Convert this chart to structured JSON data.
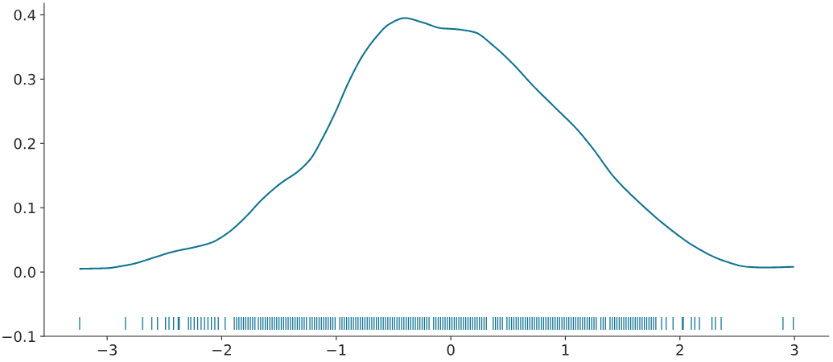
{
  "chart_data": {
    "type": "line",
    "series": [
      {
        "color": "#117391",
        "x": [
          -3.237,
          -2.998,
          -2.881,
          -2.764,
          -2.6,
          -2.413,
          -2.226,
          -2.086,
          -1.945,
          -1.805,
          -1.641,
          -1.477,
          -1.337,
          -1.22,
          -1.126,
          -1.009,
          -0.893,
          -0.775,
          -0.658,
          -0.542,
          -0.401,
          -0.261,
          -0.074,
          0.02,
          0.207,
          0.371,
          0.535,
          0.722,
          0.909,
          1.096,
          1.236,
          1.423,
          1.658,
          1.891,
          2.125,
          2.359,
          2.593,
          2.733,
          2.991
        ],
        "values": [
          0.005,
          0.006,
          0.009,
          0.013,
          0.022,
          0.032,
          0.039,
          0.046,
          0.061,
          0.083,
          0.114,
          0.139,
          0.156,
          0.177,
          0.206,
          0.248,
          0.295,
          0.335,
          0.364,
          0.385,
          0.395,
          0.389,
          0.379,
          0.378,
          0.373,
          0.352,
          0.325,
          0.289,
          0.256,
          0.223,
          0.193,
          0.148,
          0.106,
          0.07,
          0.04,
          0.019,
          0.008,
          0.007,
          0.008
        ]
      },
      {
        "type": "bar",
        "color": "#117391",
        "x": [
          -3.24,
          -2.84,
          -2.69,
          -2.61,
          -2.56,
          -2.49,
          -2.46,
          -2.42,
          -2.38,
          -2.37,
          -2.29,
          -2.27,
          -2.24,
          -2.21,
          -2.18,
          -2.15,
          -2.12,
          -2.09,
          -2.06,
          -2.03,
          -1.97,
          -1.89,
          -1.87,
          -1.85,
          -1.83,
          -1.81,
          -1.79,
          -1.77,
          -1.75,
          -1.73,
          -1.71,
          -1.68,
          -1.66,
          -1.64,
          -1.62,
          -1.6,
          -1.58,
          -1.56,
          -1.54,
          -1.52,
          -1.5,
          -1.48,
          -1.46,
          -1.44,
          -1.42,
          -1.4,
          -1.38,
          -1.36,
          -1.34,
          -1.32,
          -1.3,
          -1.28,
          -1.26,
          -1.23,
          -1.21,
          -1.19,
          -1.17,
          -1.15,
          -1.13,
          -1.11,
          -1.09,
          -1.07,
          -1.05,
          -1.03,
          -1.01,
          -0.97,
          -0.95,
          -0.93,
          -0.91,
          -0.89,
          -0.87,
          -0.85,
          -0.83,
          -0.81,
          -0.79,
          -0.77,
          -0.75,
          -0.73,
          -0.71,
          -0.69,
          -0.67,
          -0.65,
          -0.63,
          -0.61,
          -0.59,
          -0.57,
          -0.55,
          -0.53,
          -0.51,
          -0.49,
          -0.47,
          -0.45,
          -0.43,
          -0.41,
          -0.39,
          -0.37,
          -0.35,
          -0.33,
          -0.31,
          -0.29,
          -0.27,
          -0.25,
          -0.23,
          -0.21,
          -0.19,
          -0.15,
          -0.13,
          -0.11,
          -0.09,
          -0.07,
          -0.05,
          -0.03,
          -0.01,
          0.01,
          0.03,
          0.05,
          0.07,
          0.09,
          0.11,
          0.13,
          0.15,
          0.17,
          0.19,
          0.21,
          0.23,
          0.25,
          0.27,
          0.29,
          0.31,
          0.37,
          0.39,
          0.41,
          0.43,
          0.45,
          0.49,
          0.51,
          0.53,
          0.55,
          0.57,
          0.59,
          0.61,
          0.63,
          0.65,
          0.67,
          0.69,
          0.71,
          0.73,
          0.75,
          0.77,
          0.79,
          0.81,
          0.83,
          0.85,
          0.87,
          0.89,
          0.91,
          0.93,
          0.95,
          0.97,
          0.99,
          1.01,
          1.03,
          1.05,
          1.07,
          1.09,
          1.11,
          1.13,
          1.15,
          1.17,
          1.19,
          1.21,
          1.23,
          1.25,
          1.27,
          1.31,
          1.33,
          1.35,
          1.39,
          1.41,
          1.43,
          1.45,
          1.47,
          1.49,
          1.51,
          1.53,
          1.55,
          1.57,
          1.59,
          1.61,
          1.63,
          1.65,
          1.67,
          1.69,
          1.71,
          1.73,
          1.75,
          1.77,
          1.79,
          1.84,
          1.88,
          1.94,
          2.02,
          2.03,
          2.1,
          2.13,
          2.17,
          2.28,
          2.31,
          2.36,
          2.9,
          2.99
        ],
        "base": [
          -0.09,
          -0.09,
          -0.09,
          -0.09,
          -0.09,
          -0.09,
          -0.09,
          -0.09,
          -0.09,
          -0.09,
          -0.09,
          -0.09,
          -0.09,
          -0.09,
          -0.09,
          -0.09,
          -0.09,
          -0.09,
          -0.09,
          -0.09,
          -0.09,
          -0.09,
          -0.09,
          -0.09,
          -0.09,
          -0.09,
          -0.09,
          -0.09,
          -0.09,
          -0.09,
          -0.09,
          -0.09,
          -0.09,
          -0.09,
          -0.09,
          -0.09,
          -0.09,
          -0.09,
          -0.09,
          -0.09,
          -0.09,
          -0.09,
          -0.09,
          -0.09,
          -0.09,
          -0.09,
          -0.09,
          -0.09,
          -0.09,
          -0.09,
          -0.09,
          -0.09,
          -0.09,
          -0.09,
          -0.09,
          -0.09,
          -0.09,
          -0.09,
          -0.09,
          -0.09,
          -0.09,
          -0.09,
          -0.09,
          -0.09,
          -0.09,
          -0.09,
          -0.09,
          -0.09,
          -0.09,
          -0.09,
          -0.09,
          -0.09,
          -0.09,
          -0.09,
          -0.09,
          -0.09,
          -0.09,
          -0.09,
          -0.09,
          -0.09,
          -0.09,
          -0.09,
          -0.09,
          -0.09,
          -0.09,
          -0.09,
          -0.09,
          -0.09,
          -0.09,
          -0.09,
          -0.09,
          -0.09,
          -0.09,
          -0.09,
          -0.09,
          -0.09,
          -0.09,
          -0.09,
          -0.09,
          -0.09,
          -0.09,
          -0.09,
          -0.09,
          -0.09,
          -0.09,
          -0.09,
          -0.09,
          -0.09,
          -0.09,
          -0.09,
          -0.09,
          -0.09,
          -0.09,
          -0.09,
          -0.09,
          -0.09,
          -0.09,
          -0.09,
          -0.09,
          -0.09,
          -0.09,
          -0.09,
          -0.09,
          -0.09,
          -0.09,
          -0.09,
          -0.09,
          -0.09,
          -0.09,
          -0.09,
          -0.09,
          -0.09,
          -0.09,
          -0.09,
          -0.09,
          -0.09,
          -0.09,
          -0.09,
          -0.09,
          -0.09,
          -0.09,
          -0.09,
          -0.09,
          -0.09,
          -0.09,
          -0.09,
          -0.09,
          -0.09,
          -0.09,
          -0.09,
          -0.09,
          -0.09,
          -0.09,
          -0.09,
          -0.09,
          -0.09,
          -0.09,
          -0.09,
          -0.09,
          -0.09,
          -0.09,
          -0.09,
          -0.09,
          -0.09,
          -0.09,
          -0.09,
          -0.09,
          -0.09,
          -0.09,
          -0.09,
          -0.09,
          -0.09,
          -0.09,
          -0.09,
          -0.09,
          -0.09,
          -0.09,
          -0.09,
          -0.09,
          -0.09,
          -0.09,
          -0.09,
          -0.09,
          -0.09,
          -0.09,
          -0.09,
          -0.09,
          -0.09,
          -0.09,
          -0.09,
          -0.09,
          -0.09,
          -0.09,
          -0.09,
          -0.09,
          -0.09,
          -0.09,
          -0.09,
          -0.09,
          -0.09,
          -0.09,
          -0.09,
          -0.09,
          -0.09,
          -0.09,
          -0.09,
          -0.09,
          -0.09,
          -0.09,
          -0.09,
          -0.09
        ],
        "values": [
          0.02,
          0.02,
          0.02,
          0.02,
          0.02,
          0.02,
          0.02,
          0.02,
          0.02,
          0.02,
          0.02,
          0.02,
          0.02,
          0.02,
          0.02,
          0.02,
          0.02,
          0.02,
          0.02,
          0.02,
          0.02,
          0.02,
          0.02,
          0.02,
          0.02,
          0.02,
          0.02,
          0.02,
          0.02,
          0.02,
          0.02,
          0.02,
          0.02,
          0.02,
          0.02,
          0.02,
          0.02,
          0.02,
          0.02,
          0.02,
          0.02,
          0.02,
          0.02,
          0.02,
          0.02,
          0.02,
          0.02,
          0.02,
          0.02,
          0.02,
          0.02,
          0.02,
          0.02,
          0.02,
          0.02,
          0.02,
          0.02,
          0.02,
          0.02,
          0.02,
          0.02,
          0.02,
          0.02,
          0.02,
          0.02,
          0.02,
          0.02,
          0.02,
          0.02,
          0.02,
          0.02,
          0.02,
          0.02,
          0.02,
          0.02,
          0.02,
          0.02,
          0.02,
          0.02,
          0.02,
          0.02,
          0.02,
          0.02,
          0.02,
          0.02,
          0.02,
          0.02,
          0.02,
          0.02,
          0.02,
          0.02,
          0.02,
          0.02,
          0.02,
          0.02,
          0.02,
          0.02,
          0.02,
          0.02,
          0.02,
          0.02,
          0.02,
          0.02,
          0.02,
          0.02,
          0.02,
          0.02,
          0.02,
          0.02,
          0.02,
          0.02,
          0.02,
          0.02,
          0.02,
          0.02,
          0.02,
          0.02,
          0.02,
          0.02,
          0.02,
          0.02,
          0.02,
          0.02,
          0.02,
          0.02,
          0.02,
          0.02,
          0.02,
          0.02,
          0.02,
          0.02,
          0.02,
          0.02,
          0.02,
          0.02,
          0.02,
          0.02,
          0.02,
          0.02,
          0.02,
          0.02,
          0.02,
          0.02,
          0.02,
          0.02,
          0.02,
          0.02,
          0.02,
          0.02,
          0.02,
          0.02,
          0.02,
          0.02,
          0.02,
          0.02,
          0.02,
          0.02,
          0.02,
          0.02,
          0.02,
          0.02,
          0.02,
          0.02,
          0.02,
          0.02,
          0.02,
          0.02,
          0.02,
          0.02,
          0.02,
          0.02,
          0.02,
          0.02,
          0.02,
          0.02,
          0.02,
          0.02,
          0.02,
          0.02,
          0.02,
          0.02,
          0.02,
          0.02,
          0.02,
          0.02,
          0.02,
          0.02,
          0.02,
          0.02,
          0.02,
          0.02,
          0.02,
          0.02,
          0.02,
          0.02,
          0.02,
          0.02,
          0.02,
          0.02,
          0.02,
          0.02,
          0.02,
          0.02,
          0.02,
          0.02,
          0.02,
          0.02,
          0.02,
          0.02,
          0.02,
          0.02
        ]
      }
    ],
    "xlim": [
      -3.55,
      3.3
    ],
    "xticks": [
      -3,
      -2,
      -1,
      0,
      1,
      2,
      3
    ],
    "ylim": [
      -0.1,
      0.418
    ],
    "yticks": [
      -0.1,
      {
        "value": 0,
        "label": "0.0"
      },
      0.1,
      0.2,
      0.3,
      0.4
    ],
    "grid": false
  }
}
